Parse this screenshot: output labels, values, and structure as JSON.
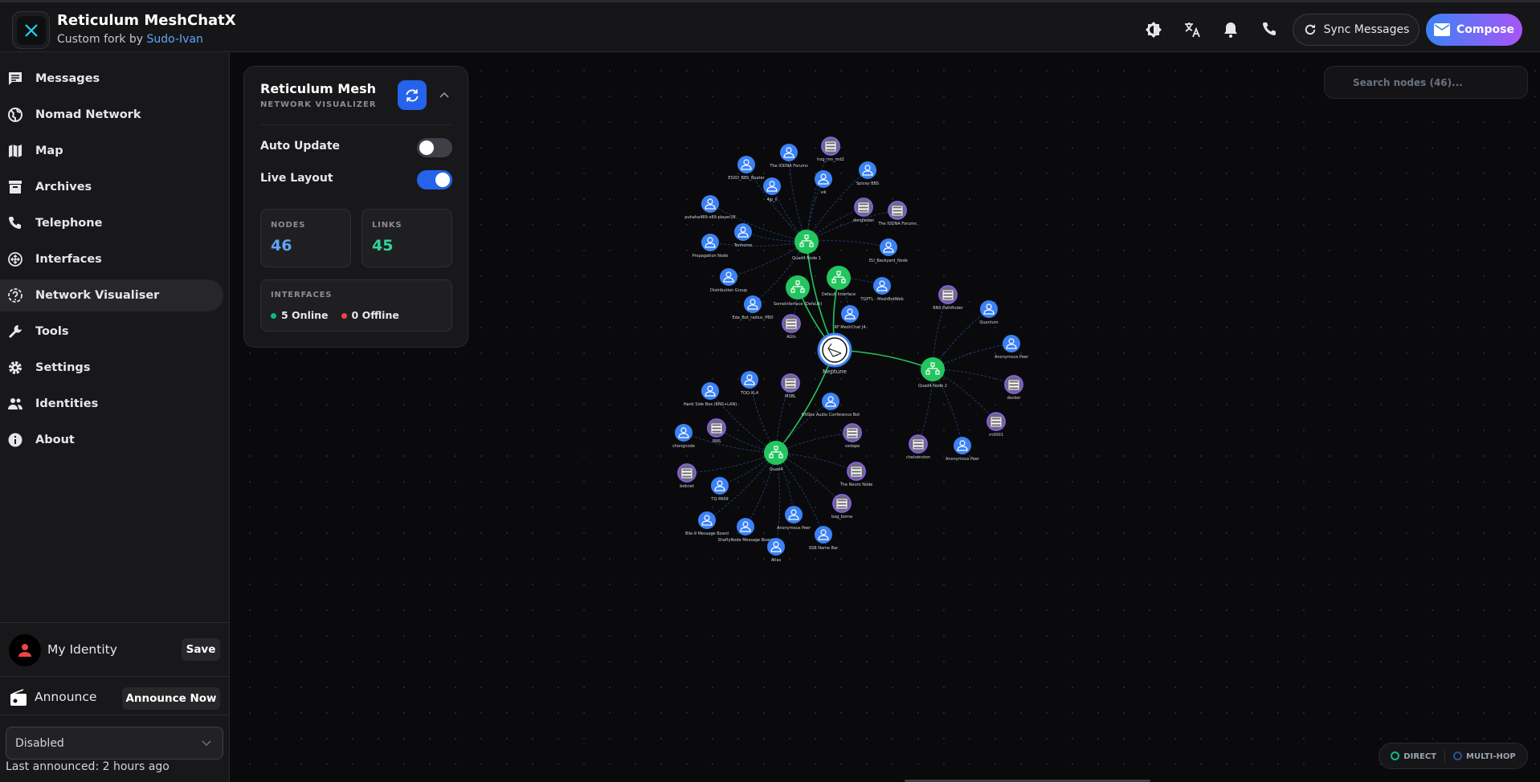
{
  "header": {
    "title": "Reticulum MeshChatX",
    "subtitle_prefix": "Custom fork by ",
    "subtitle_author": "Sudo-Ivan",
    "sync_label": "Sync Messages",
    "compose_label": "Compose"
  },
  "sidebar": {
    "items": [
      {
        "label": "Messages",
        "icon": "message-icon"
      },
      {
        "label": "Nomad Network",
        "icon": "globe-icon"
      },
      {
        "label": "Map",
        "icon": "map-icon"
      },
      {
        "label": "Archives",
        "icon": "archive-icon"
      },
      {
        "label": "Telephone",
        "icon": "phone-icon"
      },
      {
        "label": "Interfaces",
        "icon": "interfaces-icon"
      },
      {
        "label": "Network Visualiser",
        "icon": "network-icon",
        "active": true
      },
      {
        "label": "Tools",
        "icon": "wrench-icon"
      },
      {
        "label": "Settings",
        "icon": "gear-icon"
      },
      {
        "label": "Identities",
        "icon": "users-icon"
      },
      {
        "label": "About",
        "icon": "info-icon"
      }
    ],
    "identity": {
      "name": "My Identity",
      "save_label": "Save"
    },
    "announce": {
      "label": "Announce",
      "button_label": "Announce Now",
      "mode": "Disabled",
      "last_announced": "Last announced: 2 hours ago"
    }
  },
  "panel": {
    "title": "Reticulum Mesh",
    "subtitle": "NETWORK VISUALIZER",
    "auto_update_label": "Auto Update",
    "auto_update": false,
    "live_layout_label": "Live Layout",
    "live_layout": true,
    "nodes_label": "NODES",
    "nodes": "46",
    "links_label": "LINKS",
    "links": "45",
    "interfaces_label": "INTERFACES",
    "online": "5 Online",
    "offline": "0 Offline"
  },
  "search": {
    "placeholder": "Search nodes (46)..."
  },
  "legend": {
    "direct": "DIRECT",
    "multihop": "MULTI-HOP"
  },
  "colors": {
    "accent": "#2563eb",
    "direct": "#22c55e",
    "multihop": "#1e3a8a",
    "user": "#3b82f6",
    "server": "#6b6b78",
    "hub": "#22c55e",
    "online": "#10b981",
    "offline": "#ef4444"
  },
  "graph": {
    "nodes": [
      {
        "label": "Neptune",
        "type": "center"
      },
      {
        "label": "Quad4 Node 1",
        "type": "hub",
        "parent": 0
      },
      {
        "label": "Default Interface",
        "type": "hub",
        "parent": 0
      },
      {
        "label": "SomeInterface (Default)",
        "type": "hub",
        "parent": 0
      },
      {
        "label": "Quad4 Node 2",
        "type": "hub",
        "parent": 0
      },
      {
        "label": "Quad4",
        "type": "hub",
        "parent": 0
      },
      {
        "label": "ESXD_BBS_Boater",
        "type": "user",
        "parent": 1
      },
      {
        "label": "The IODNA Forums",
        "type": "user",
        "parent": 1
      },
      {
        "label": "hog_mn_md2",
        "type": "server",
        "parent": 1
      },
      {
        "label": "Spicey BBS",
        "type": "user",
        "parent": 1
      },
      {
        "label": "vik",
        "type": "user",
        "parent": 1
      },
      {
        "label": "4jp_ii",
        "type": "user",
        "parent": 1
      },
      {
        "label": "dongleden",
        "type": "server",
        "parent": 1
      },
      {
        "label": "The IODNA Forums",
        "type": "server",
        "parent": 1
      },
      {
        "label": "puhaha489-x89-player28",
        "type": "user",
        "parent": 1
      },
      {
        "label": "Tonhome",
        "type": "user",
        "parent": 1
      },
      {
        "label": "Propagation Node",
        "type": "user",
        "parent": 1
      },
      {
        "label": "EU_Backyard_Node",
        "type": "user",
        "parent": 1
      },
      {
        "label": "Distribution Group",
        "type": "user",
        "parent": 1
      },
      {
        "label": "Eda_Bot_radius_PBD",
        "type": "user",
        "parent": 1
      },
      {
        "label": "TGPTL - MeshBotWeb",
        "type": "user",
        "parent": 2
      },
      {
        "label": "RF MeshChat J4",
        "type": "user",
        "parent": 2
      },
      {
        "label": "AGIn",
        "type": "server",
        "parent": 3
      },
      {
        "label": "RNS Pathfinder",
        "type": "server",
        "parent": 4
      },
      {
        "label": "Quantum",
        "type": "user",
        "parent": 4
      },
      {
        "label": "Anonymous Peer",
        "type": "user",
        "parent": 4
      },
      {
        "label": "docker",
        "type": "server",
        "parent": 4
      },
      {
        "label": "rn0001",
        "type": "server",
        "parent": 4
      },
      {
        "label": "Anonymous Peer",
        "type": "user",
        "parent": 4
      },
      {
        "label": "chelsenston",
        "type": "server",
        "parent": 4
      },
      {
        "label": "TOQ-XL4",
        "type": "user",
        "parent": 5
      },
      {
        "label": "MSBL",
        "type": "server",
        "parent": 5
      },
      {
        "label": "Hank Side Box (RNS+LAN)",
        "type": "user",
        "parent": 5
      },
      {
        "label": "RNSbx Audio Conference Bot",
        "type": "user",
        "parent": 5
      },
      {
        "label": "chongnode",
        "type": "user",
        "parent": 5
      },
      {
        "label": "RNS",
        "type": "server",
        "parent": 5
      },
      {
        "label": "vedape",
        "type": "server",
        "parent": 5
      },
      {
        "label": "bobnet",
        "type": "server",
        "parent": 5
      },
      {
        "label": "The Neuro Node",
        "type": "server",
        "parent": 5
      },
      {
        "label": "TQ-PA09",
        "type": "user",
        "parent": 5
      },
      {
        "label": "bag_boma",
        "type": "server",
        "parent": 5
      },
      {
        "label": "Elle-9 Message Board",
        "type": "user",
        "parent": 5
      },
      {
        "label": "ShaftyNode Message Board",
        "type": "user",
        "parent": 5
      },
      {
        "label": "Anonymous Peer",
        "type": "user",
        "parent": 5
      },
      {
        "label": "SSB Name Bar",
        "type": "user",
        "parent": 5
      },
      {
        "label": "Atlas",
        "type": "user",
        "parent": 5
      }
    ]
  }
}
